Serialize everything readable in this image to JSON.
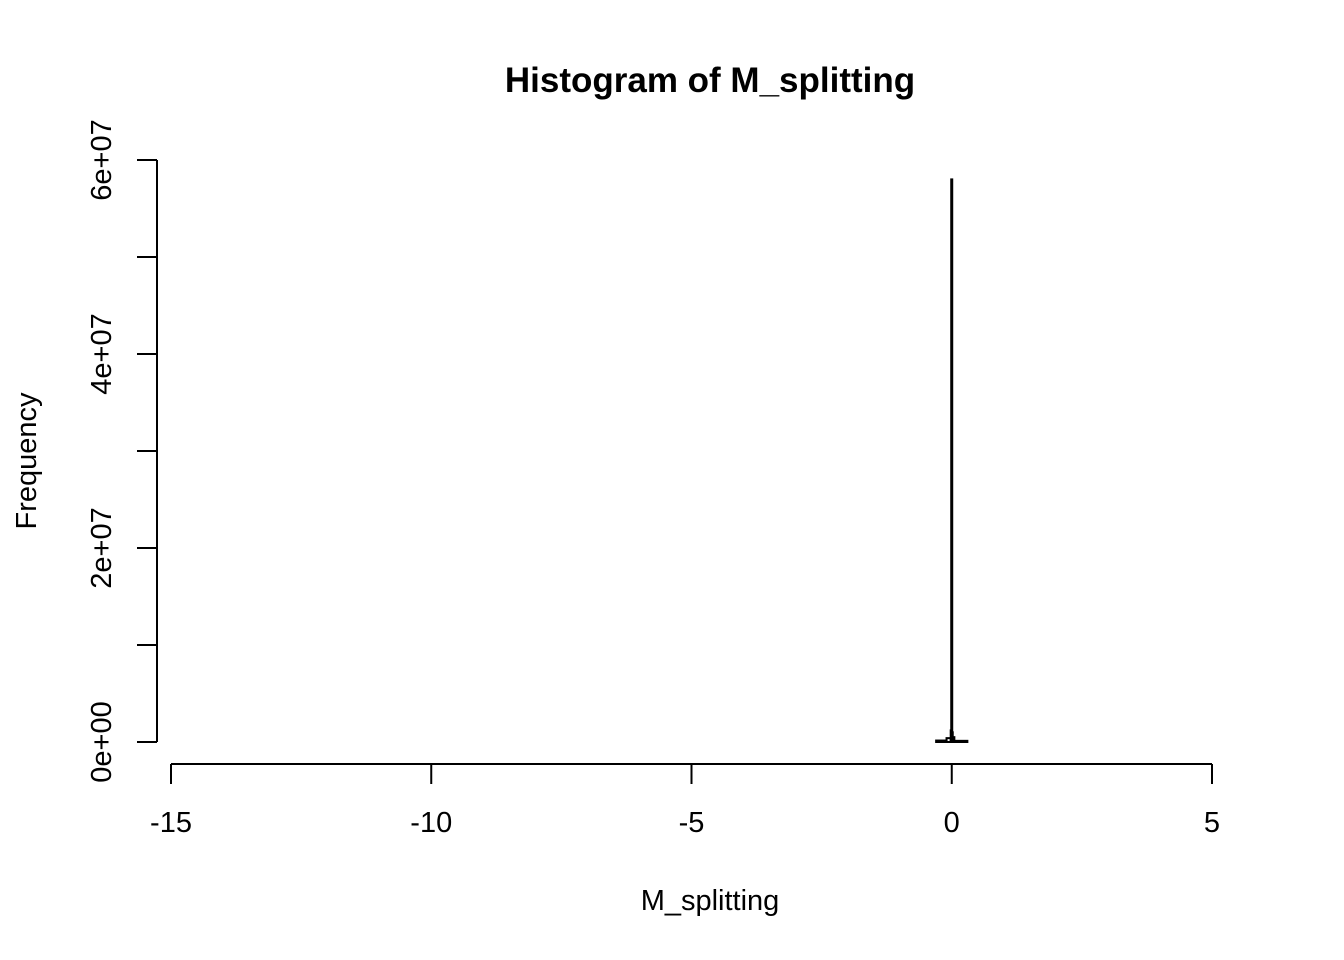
{
  "chart_data": {
    "type": "bar",
    "title": "Histogram of M_splitting",
    "xlabel": "M_splitting",
    "ylabel": "Frequency",
    "xlim": [
      -15,
      5
    ],
    "ylim": [
      0,
      60000000
    ],
    "x_ticks": [
      -15,
      -10,
      -5,
      0,
      5
    ],
    "x_tick_labels": [
      "-15",
      "-10",
      "-5",
      "0",
      "5"
    ],
    "y_ticks": [
      0,
      10000000,
      20000000,
      30000000,
      40000000,
      50000000,
      60000000
    ],
    "y_tick_labels": [
      "0e+00",
      "",
      "2e+07",
      "",
      "4e+07",
      "",
      "6e+07"
    ],
    "bin_width": 0.01,
    "bins": [
      {
        "x0": -14.5,
        "x1": -0.3,
        "count": 0
      },
      {
        "x0": -0.3,
        "x1": -0.1,
        "count": 150000
      },
      {
        "x0": -0.1,
        "x1": -0.02,
        "count": 400000
      },
      {
        "x0": -0.02,
        "x1": -0.01,
        "count": 1200000
      },
      {
        "x0": -0.01,
        "x1": 0.0,
        "count": 58000000
      },
      {
        "x0": 0.0,
        "x1": 0.01,
        "count": 1000000
      },
      {
        "x0": 0.01,
        "x1": 0.05,
        "count": 500000
      },
      {
        "x0": 0.05,
        "x1": 0.3,
        "count": 120000
      },
      {
        "x0": 0.3,
        "x1": 5.2,
        "count": 0
      }
    ],
    "grid": false,
    "legend": "none"
  }
}
